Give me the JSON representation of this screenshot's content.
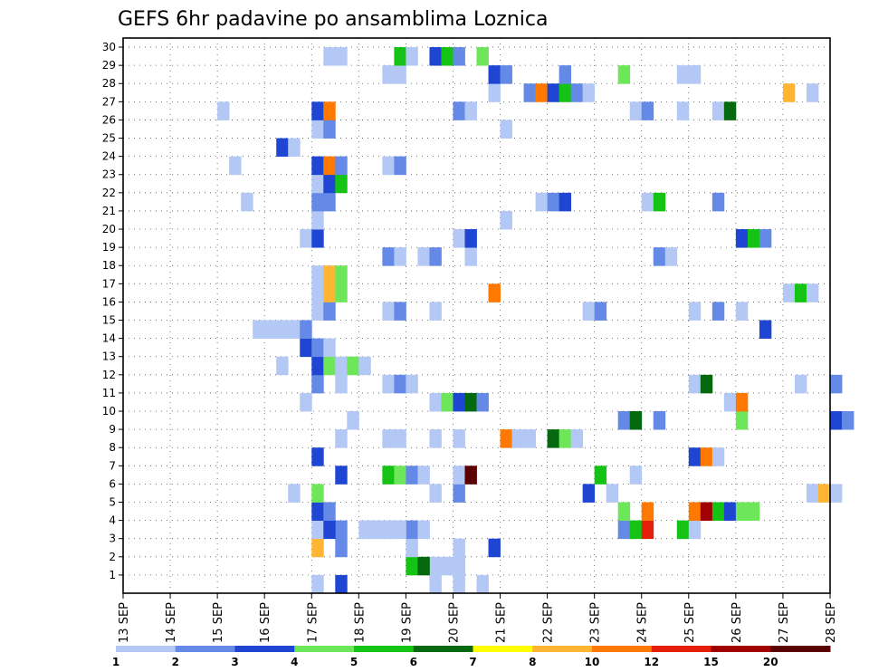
{
  "title": "GEFS 6hr padavine po ansamblima Loznica",
  "chart_data": {
    "type": "heatmap",
    "title": "GEFS 6hr padavine po ansamblima Loznica",
    "x_unit": "6h step from 13 SEP 00Z",
    "x_tick_labels": [
      "13 SEP",
      "14 SEP",
      "15 SEP",
      "16 SEP",
      "17 SEP",
      "18 SEP",
      "19 SEP",
      "20 SEP",
      "21 SEP",
      "22 SEP",
      "23 SEP",
      "24 SEP",
      "25 SEP",
      "26 SEP",
      "27 SEP",
      "28 SEP"
    ],
    "y_tick_labels": [
      "1",
      "2",
      "3",
      "4",
      "5",
      "6",
      "7",
      "8",
      "9",
      "10",
      "11",
      "12",
      "13",
      "14",
      "15",
      "16",
      "17",
      "18",
      "19",
      "20",
      "21",
      "22",
      "23",
      "24",
      "25",
      "26",
      "27",
      "28",
      "29",
      "30"
    ],
    "ylim": [
      1,
      30
    ],
    "grid": true,
    "colorbar": {
      "labels": [
        "1",
        "2",
        "3",
        "4",
        "5",
        "6",
        "7",
        "8",
        "10",
        "12",
        "15",
        "20"
      ],
      "colors": [
        "#b4c8f5",
        "#6489e6",
        "#1e46d2",
        "#6ee65a",
        "#14c314",
        "#05690f",
        "#ffff00",
        "#ffb432",
        "#ff7800",
        "#e61e0a",
        "#a00000",
        "#5a0000"
      ]
    },
    "cells": [
      [
        1,
        20,
        1
      ],
      [
        1,
        20.5,
        1
      ],
      [
        1,
        19.5,
        1
      ],
      [
        1,
        17,
        1
      ],
      [
        1,
        17.5,
        3
      ],
      [
        2,
        19,
        5
      ],
      [
        2,
        20,
        1
      ],
      [
        2,
        19.5,
        1
      ],
      [
        2,
        20,
        1
      ],
      [
        2,
        19.25,
        6
      ],
      [
        2,
        19.75,
        1
      ],
      [
        3,
        17,
        8
      ],
      [
        3,
        17.5,
        2
      ],
      [
        3,
        19,
        1
      ],
      [
        3,
        20,
        1
      ],
      [
        3,
        20.75,
        3
      ],
      [
        4,
        17,
        1
      ],
      [
        4,
        17.5,
        2
      ],
      [
        4,
        18,
        1
      ],
      [
        4,
        18.5,
        1
      ],
      [
        4,
        19,
        2
      ],
      [
        4,
        19.25,
        1
      ],
      [
        4,
        17.25,
        3
      ],
      [
        4,
        18.25,
        1
      ],
      [
        4,
        18.75,
        1
      ],
      [
        4,
        23.5,
        2
      ],
      [
        4,
        23.75,
        5
      ],
      [
        4,
        24,
        10
      ],
      [
        4,
        24.75,
        5
      ],
      [
        4,
        25,
        1
      ],
      [
        5,
        17,
        3
      ],
      [
        5,
        17.25,
        2
      ],
      [
        5,
        23.5,
        4
      ],
      [
        5,
        24,
        9
      ],
      [
        5,
        25,
        9
      ],
      [
        5,
        25.25,
        11
      ],
      [
        5,
        25.5,
        5
      ],
      [
        5,
        25.75,
        3
      ],
      [
        5,
        26,
        4
      ],
      [
        5,
        26.25,
        4
      ],
      [
        6,
        16.5,
        1
      ],
      [
        6,
        17,
        4
      ],
      [
        6,
        19.5,
        1
      ],
      [
        6,
        20,
        2
      ],
      [
        6,
        22.75,
        3
      ],
      [
        6,
        23.25,
        1
      ],
      [
        6,
        27.5,
        1
      ],
      [
        6,
        27.75,
        8
      ],
      [
        6,
        28,
        1
      ],
      [
        7,
        17.5,
        3
      ],
      [
        7,
        18.5,
        5
      ],
      [
        7,
        18.75,
        4
      ],
      [
        7,
        19,
        2
      ],
      [
        7,
        19.25,
        1
      ],
      [
        7,
        20,
        1
      ],
      [
        7,
        20.25,
        12
      ],
      [
        7,
        23,
        5
      ],
      [
        7,
        23.75,
        1
      ],
      [
        8,
        17,
        3
      ],
      [
        8,
        25,
        3
      ],
      [
        8,
        25.25,
        9
      ],
      [
        8,
        25.5,
        1
      ],
      [
        9,
        17.5,
        1
      ],
      [
        9,
        18.5,
        1
      ],
      [
        9,
        18.75,
        1
      ],
      [
        9,
        19.5,
        1
      ],
      [
        9,
        20,
        1
      ],
      [
        9,
        21,
        9
      ],
      [
        9,
        21.25,
        1
      ],
      [
        9,
        21.5,
        1
      ],
      [
        9,
        22,
        6
      ],
      [
        9,
        22.25,
        4
      ],
      [
        9,
        22.5,
        1
      ],
      [
        10,
        17.75,
        1
      ],
      [
        10,
        23.5,
        2
      ],
      [
        10,
        23.75,
        6
      ],
      [
        10,
        24.25,
        2
      ],
      [
        10,
        26,
        4
      ],
      [
        10,
        28,
        3
      ],
      [
        10,
        28.25,
        2
      ],
      [
        11,
        16.75,
        1
      ],
      [
        11,
        19.5,
        1
      ],
      [
        11,
        19.75,
        4
      ],
      [
        11,
        20,
        3
      ],
      [
        11,
        20.25,
        6
      ],
      [
        11,
        20.5,
        2
      ],
      [
        11,
        25.75,
        1
      ],
      [
        11,
        26,
        9
      ],
      [
        12,
        17,
        2
      ],
      [
        12,
        17.5,
        1
      ],
      [
        12,
        18.5,
        1
      ],
      [
        12,
        18.75,
        2
      ],
      [
        12,
        19,
        1
      ],
      [
        12,
        25,
        1
      ],
      [
        12,
        25.25,
        6
      ],
      [
        12,
        27.25,
        1
      ],
      [
        12,
        28,
        2
      ],
      [
        13,
        16.25,
        1
      ],
      [
        13,
        17,
        3
      ],
      [
        13,
        17.25,
        4
      ],
      [
        13,
        17.5,
        1
      ],
      [
        13,
        17.75,
        4
      ],
      [
        13,
        18,
        1
      ],
      [
        14,
        16.75,
        3
      ],
      [
        14,
        17,
        2
      ],
      [
        14,
        17.25,
        1
      ],
      [
        15,
        15.75,
        1
      ],
      [
        15,
        16,
        1
      ],
      [
        15,
        16.25,
        1
      ],
      [
        15,
        16.5,
        1
      ],
      [
        15,
        16.75,
        2
      ],
      [
        15,
        26.5,
        3
      ],
      [
        16,
        17,
        1
      ],
      [
        16,
        17.25,
        2
      ],
      [
        16,
        18.5,
        1
      ],
      [
        16,
        18.75,
        2
      ],
      [
        16,
        19.5,
        1
      ],
      [
        16,
        22.75,
        1
      ],
      [
        16,
        23,
        2
      ],
      [
        16,
        25,
        1
      ],
      [
        16,
        25.5,
        2
      ],
      [
        16,
        26,
        1
      ],
      [
        17,
        17,
        1
      ],
      [
        17,
        17.25,
        8
      ],
      [
        17,
        17.5,
        4
      ],
      [
        17,
        20.75,
        9
      ],
      [
        17,
        27,
        1
      ],
      [
        17,
        27.25,
        5
      ],
      [
        17,
        27.5,
        1
      ],
      [
        18,
        17,
        1
      ],
      [
        18,
        17.25,
        8
      ],
      [
        18,
        17.5,
        4
      ],
      [
        19,
        18.5,
        2
      ],
      [
        19,
        18.75,
        1
      ],
      [
        19,
        19.25,
        1
      ],
      [
        19,
        19.5,
        2
      ],
      [
        19,
        20.25,
        1
      ],
      [
        19,
        24.25,
        2
      ],
      [
        19,
        24.5,
        1
      ],
      [
        20,
        16.75,
        1
      ],
      [
        20,
        17,
        3
      ],
      [
        20,
        20,
        1
      ],
      [
        20,
        20.25,
        3
      ],
      [
        20,
        26,
        3
      ],
      [
        20,
        26.25,
        5
      ],
      [
        20,
        26.5,
        2
      ],
      [
        21,
        17,
        1
      ],
      [
        21,
        21,
        1
      ],
      [
        22,
        15.5,
        1
      ],
      [
        22,
        17,
        2
      ],
      [
        22,
        17.25,
        2
      ],
      [
        22,
        21.75,
        1
      ],
      [
        22,
        22,
        2
      ],
      [
        22,
        22.25,
        3
      ],
      [
        22,
        24,
        1
      ],
      [
        22,
        24.25,
        5
      ],
      [
        22,
        25.5,
        2
      ],
      [
        23,
        17,
        1
      ],
      [
        23,
        17.25,
        3
      ],
      [
        23,
        17.5,
        5
      ],
      [
        24,
        15.25,
        1
      ],
      [
        24,
        17,
        3
      ],
      [
        24,
        17.25,
        9
      ],
      [
        24,
        17.5,
        2
      ],
      [
        24,
        18.5,
        1
      ],
      [
        24,
        18.75,
        2
      ],
      [
        25,
        16.25,
        3
      ],
      [
        25,
        16.5,
        1
      ],
      [
        26,
        17,
        1
      ],
      [
        26,
        17.25,
        2
      ],
      [
        26,
        21,
        1
      ],
      [
        27,
        15,
        1
      ],
      [
        27,
        17,
        3
      ],
      [
        27,
        17.25,
        9
      ],
      [
        27,
        20,
        2
      ],
      [
        27,
        20.25,
        1
      ],
      [
        27,
        23.75,
        1
      ],
      [
        27,
        24,
        2
      ],
      [
        27,
        24.75,
        1
      ],
      [
        27,
        25.5,
        1
      ],
      [
        27,
        25.75,
        6
      ],
      [
        28,
        20.75,
        1
      ],
      [
        28,
        21.5,
        2
      ],
      [
        28,
        21.75,
        9
      ],
      [
        28,
        22,
        3
      ],
      [
        28,
        22.25,
        5
      ],
      [
        28,
        22.5,
        2
      ],
      [
        28,
        22.75,
        1
      ],
      [
        28,
        27,
        8
      ],
      [
        28,
        27.5,
        1
      ],
      [
        29,
        18.5,
        1
      ],
      [
        29,
        18.75,
        1
      ],
      [
        29,
        20.75,
        3
      ],
      [
        29,
        21,
        2
      ],
      [
        29,
        22.25,
        2
      ],
      [
        29,
        23.5,
        4
      ],
      [
        29,
        24.75,
        1
      ],
      [
        29,
        25,
        1
      ],
      [
        30,
        17.25,
        1
      ],
      [
        30,
        17.5,
        1
      ],
      [
        30,
        18.75,
        5
      ],
      [
        30,
        19,
        1
      ],
      [
        30,
        19.5,
        3
      ],
      [
        30,
        19.75,
        5
      ],
      [
        30,
        20,
        2
      ],
      [
        30,
        20.5,
        4
      ]
    ]
  }
}
